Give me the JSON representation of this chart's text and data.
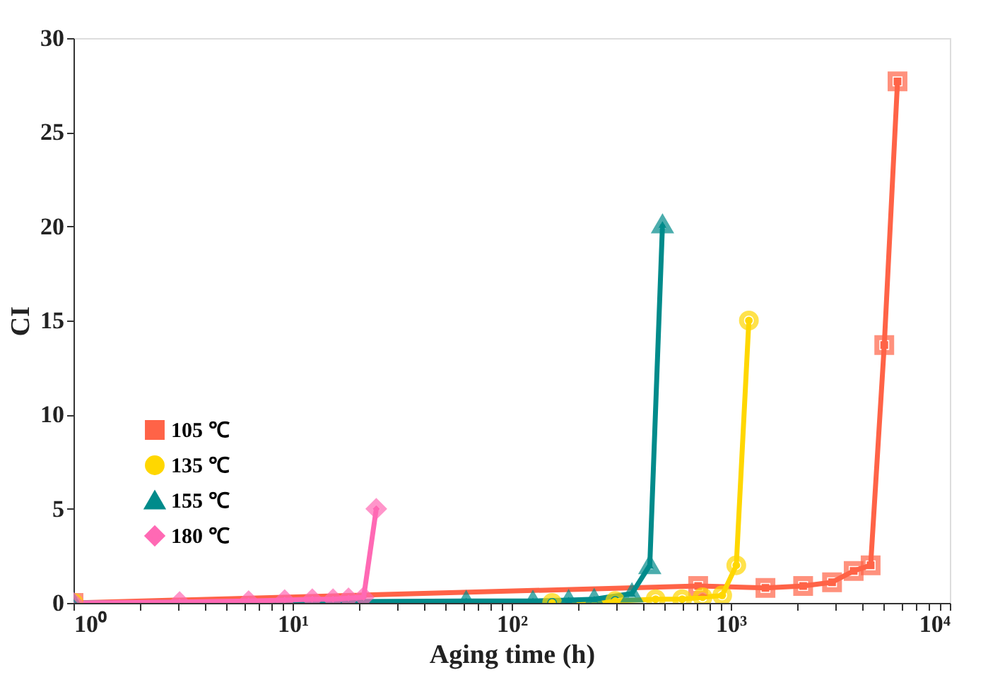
{
  "chart_data": {
    "type": "line",
    "xlabel": "Aging time (h)",
    "ylabel": "CI",
    "log": "x",
    "xlim": [
      1,
      10000
    ],
    "ylim": [
      0,
      30
    ],
    "xticks": [
      {
        "value": 1,
        "label": "10⁰"
      },
      {
        "value": 10,
        "label": "10¹"
      },
      {
        "value": 100,
        "label": "10²"
      },
      {
        "value": 1000,
        "label": "10³"
      },
      {
        "value": 10000,
        "label": "10⁴"
      },
      {
        "value": 2,
        "label": null
      },
      {
        "value": 3,
        "label": null
      },
      {
        "value": 4,
        "label": null
      },
      {
        "value": 5,
        "label": null
      },
      {
        "value": 6,
        "label": null
      },
      {
        "value": 7,
        "label": null
      },
      {
        "value": 8,
        "label": null
      },
      {
        "value": 9,
        "label": null
      },
      {
        "value": 20,
        "label": null
      },
      {
        "value": 30,
        "label": null
      },
      {
        "value": 40,
        "label": null
      },
      {
        "value": 50,
        "label": null
      },
      {
        "value": 60,
        "label": null
      },
      {
        "value": 70,
        "label": null
      },
      {
        "value": 80,
        "label": null
      },
      {
        "value": 90,
        "label": null
      },
      {
        "value": 200,
        "label": null
      },
      {
        "value": 300,
        "label": null
      },
      {
        "value": 400,
        "label": null
      },
      {
        "value": 500,
        "label": null
      },
      {
        "value": 600,
        "label": null
      },
      {
        "value": 700,
        "label": null
      },
      {
        "value": 800,
        "label": null
      },
      {
        "value": 900,
        "label": null
      },
      {
        "value": 2000,
        "label": null
      },
      {
        "value": 3000,
        "label": null
      },
      {
        "value": 4000,
        "label": null
      },
      {
        "value": 5000,
        "label": null
      },
      {
        "value": 6000,
        "label": null
      },
      {
        "value": 7000,
        "label": null
      },
      {
        "value": 8000,
        "label": null
      },
      {
        "value": 9000,
        "label": null
      }
    ],
    "yticks": [
      0,
      5,
      10,
      15,
      20,
      25,
      30
    ],
    "grid": false,
    "legend": "left",
    "line_style": "solid",
    "series": [
      {
        "name": "105 ℃",
        "color": "#ff6347",
        "marker": "square",
        "x": [
          1,
          710,
          1440,
          2140,
          2900,
          3640,
          4350,
          5020,
          5770
        ],
        "values": [
          0,
          0.9,
          0.8,
          0.9,
          1.1,
          1.7,
          2.0,
          13.7,
          27.7
        ]
      },
      {
        "name": "135 ℃",
        "color": "#ffd700",
        "marker": "circle",
        "x": [
          1,
          153,
          297,
          454,
          600,
          744,
          914,
          1060,
          1210
        ],
        "values": [
          0,
          0.0,
          0.1,
          0.2,
          0.2,
          0.3,
          0.4,
          2.0,
          15.0
        ]
      },
      {
        "name": "155 ℃",
        "color": "#008b8b",
        "marker": "triangle",
        "x": [
          1,
          62,
          125,
          182,
          238,
          354,
          427,
          488
        ],
        "values": [
          0,
          0.1,
          0.1,
          0.15,
          0.2,
          0.5,
          2.0,
          20.1
        ]
      },
      {
        "name": "180 ℃",
        "color": "#ff69b4",
        "marker": "diamond",
        "x": [
          1,
          3.05,
          6.3,
          9.2,
          12.3,
          15.3,
          18,
          21.1,
          24.1
        ],
        "values": [
          0,
          0.05,
          0.1,
          0.15,
          0.2,
          0.2,
          0.25,
          0.3,
          5.0
        ]
      }
    ]
  }
}
